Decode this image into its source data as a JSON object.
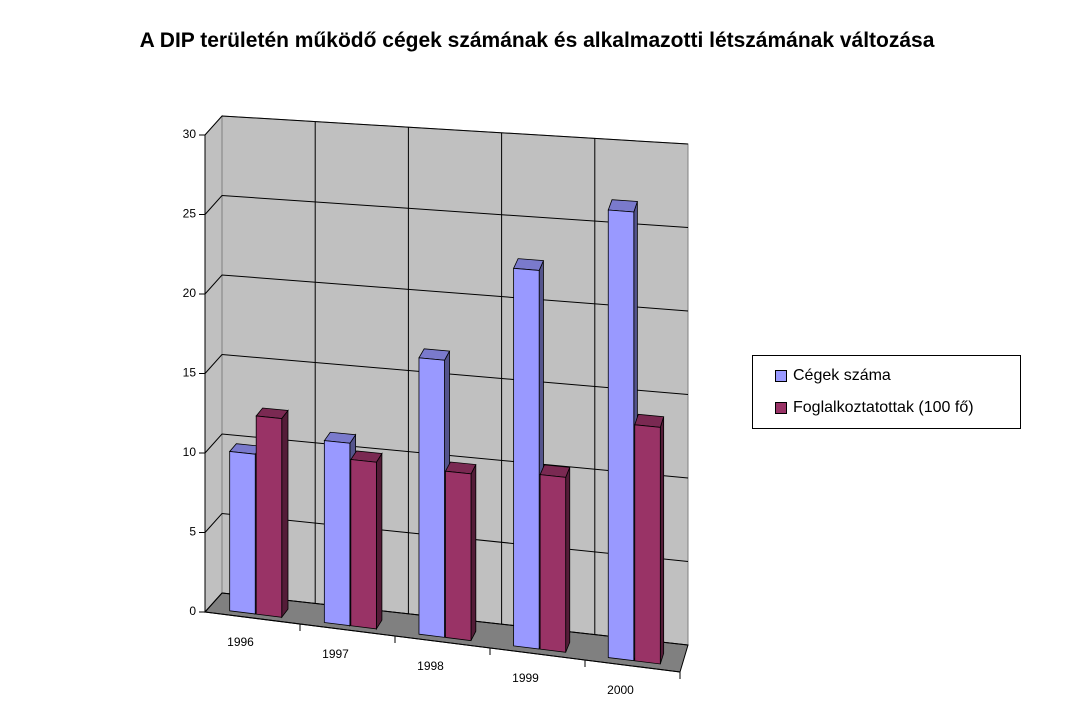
{
  "chart_data": {
    "type": "bar3d",
    "title": "A DIP területén működő cégek számának és alkalmazotti létszámának változása",
    "categories": [
      "1996",
      "1997",
      "1998",
      "1999",
      "2000"
    ],
    "series": [
      {
        "name": "Cégek száma",
        "color": "#9999ff",
        "values": [
          10,
          11.3,
          17,
          23,
          27
        ]
      },
      {
        "name": "Foglalkoztatottak (100 fő)",
        "color": "#993366",
        "values": [
          12.4,
          10.3,
          10.2,
          10.6,
          14.2
        ]
      }
    ],
    "ylim": [
      0,
      30
    ],
    "yticks": [
      0,
      5,
      10,
      15,
      20,
      25,
      30
    ],
    "grid": true,
    "legend": "right"
  }
}
